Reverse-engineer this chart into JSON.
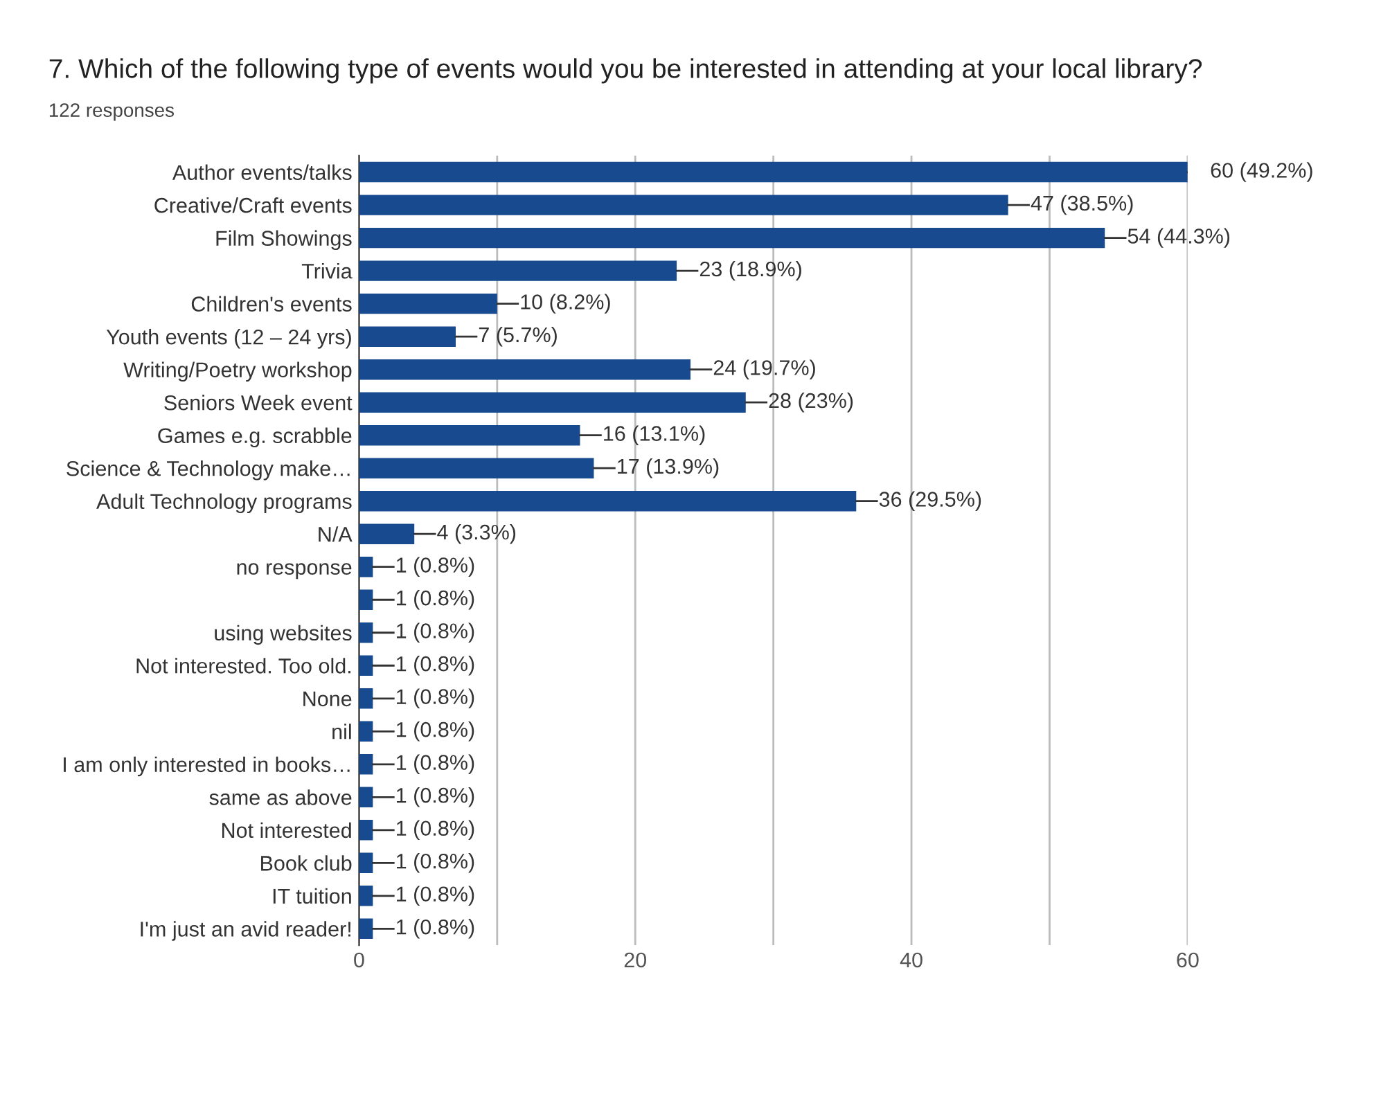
{
  "chart_data": {
    "type": "bar",
    "orientation": "horizontal",
    "title": "7. Which of the following type of events would you be interested in attending at your local library?",
    "subtitle": "122 responses",
    "categories": [
      "Author events/talks",
      "Creative/Craft events",
      "Film Showings",
      "Trivia",
      "Children's events",
      "Youth events (12 – 24 yrs)",
      "Writing/Poetry workshop",
      "Seniors Week event",
      "Games e.g. scrabble",
      "Science & Technology make…",
      "Adult Technology programs",
      "N/A",
      "no response",
      null,
      "using websites",
      "Not interested. Too old.",
      "None",
      "nil",
      "I am only interested in books…",
      "same as above",
      "Not interested",
      "Book club",
      "IT tuition",
      "I'm just an avid reader!"
    ],
    "values": [
      60,
      47,
      54,
      23,
      10,
      7,
      24,
      28,
      16,
      17,
      36,
      4,
      1,
      1,
      1,
      1,
      1,
      1,
      1,
      1,
      1,
      1,
      1,
      1
    ],
    "value_labels": [
      "60 (49.2%)",
      "47 (38.5%)",
      "54 (44.3%)",
      "23 (18.9%)",
      "10 (8.2%)",
      "7 (5.7%)",
      "24 (19.7%)",
      "28 (23%)",
      "16 (13.1%)",
      "17 (13.9%)",
      "36 (29.5%)",
      "4 (3.3%)",
      "1 (0.8%)",
      "1 (0.8%)",
      "1 (0.8%)",
      "1 (0.8%)",
      "1 (0.8%)",
      "1 (0.8%)",
      "1 (0.8%)",
      "1 (0.8%)",
      "1 (0.8%)",
      "1 (0.8%)",
      "1 (0.8%)",
      "1 (0.8%)"
    ],
    "color": "#174a8f",
    "xlim": [
      0,
      60
    ],
    "xticks": [
      0,
      {
        "value": 10,
        "label": null
      },
      20,
      {
        "value": 30,
        "label": null
      },
      40,
      {
        "value": 50,
        "label": null
      },
      60
    ],
    "grid": "x",
    "legend": false
  }
}
